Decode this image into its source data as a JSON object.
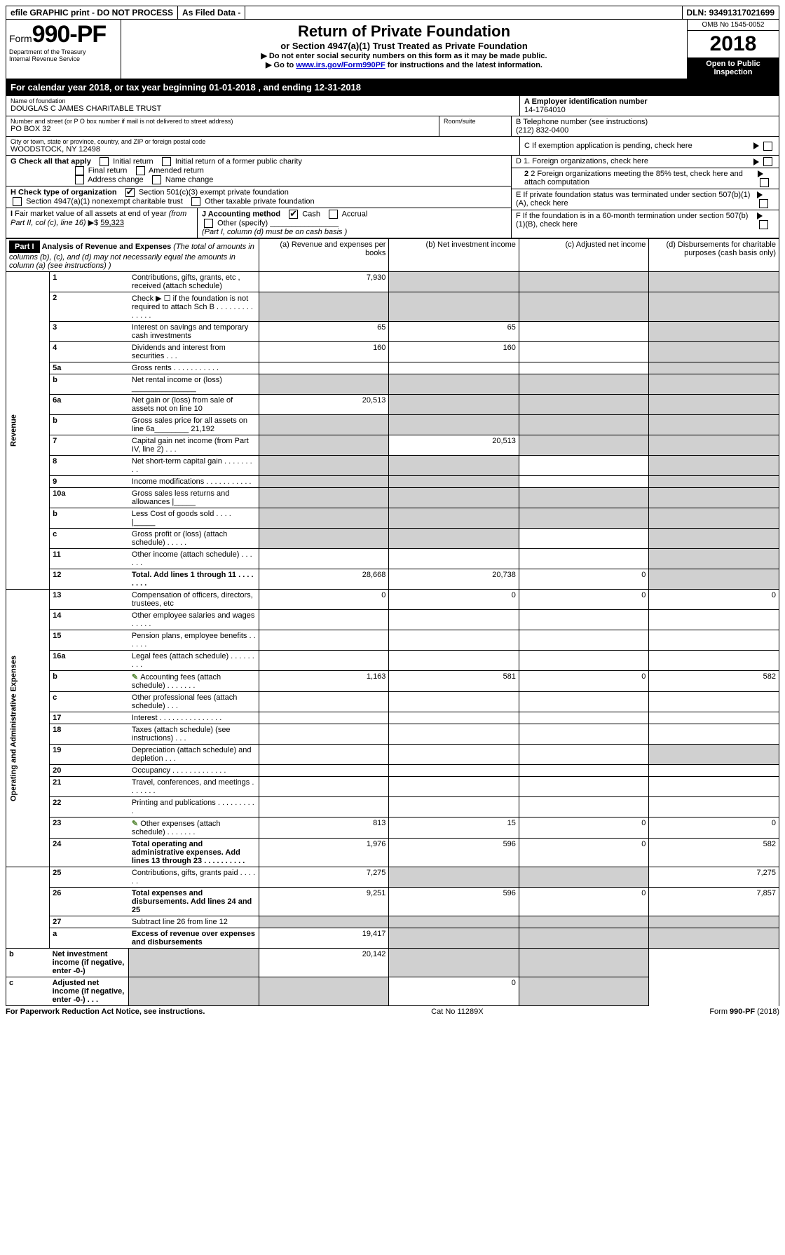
{
  "top_bar": {
    "efile": "efile GRAPHIC print - DO NOT PROCESS",
    "as_filed": "As Filed Data -",
    "dln_label": "DLN:",
    "dln": "93491317021699"
  },
  "header": {
    "form_label": "Form",
    "form_no": "990-PF",
    "dept1": "Department of the Treasury",
    "dept2": "Internal Revenue Service",
    "title": "Return of Private Foundation",
    "subtitle": "or Section 4947(a)(1) Trust Treated as Private Foundation",
    "inst1": "▶ Do not enter social security numbers on this form as it may be made public.",
    "inst2_pre": "▶ Go to ",
    "inst2_link": "www.irs.gov/Form990PF",
    "inst2_post": " for instructions and the latest information.",
    "omb": "OMB No 1545-0052",
    "year": "2018",
    "open1": "Open to Public",
    "open2": "Inspection"
  },
  "cal_year": {
    "pre": "For calendar year 2018, or tax year beginning ",
    "begin": "01-01-2018",
    "mid": " , and ending ",
    "end": "12-31-2018"
  },
  "name_block": {
    "name_label": "Name of foundation",
    "name": "DOUGLAS C JAMES CHARITABLE TRUST",
    "addr_label": "Number and street (or P O  box number if mail is not delivered to street address)",
    "room_label": "Room/suite",
    "addr": "PO BOX 32",
    "city_label": "City or town, state or province, country, and ZIP or foreign postal code",
    "city": "WOODSTOCK, NY  12498"
  },
  "right_block": {
    "a_label": "A Employer identification number",
    "a_val": "14-1764010",
    "b_label": "B Telephone number (see instructions)",
    "b_val": "(212) 832-0400",
    "c_label": "C If exemption application is pending, check here",
    "d1_label": "D 1. Foreign organizations, check here",
    "d2_label": "2  Foreign organizations meeting the 85% test, check here and attach computation",
    "e_label": "E  If private foundation status was terminated under section 507(b)(1)(A), check here",
    "f_label": "F  If the foundation is in a 60-month termination under section 507(b)(1)(B), check here"
  },
  "g_block": {
    "g_label": "G Check all that apply",
    "initial": "Initial return",
    "initial_former": "Initial return of a former public charity",
    "final": "Final return",
    "amended": "Amended return",
    "addr_change": "Address change",
    "name_change": "Name change"
  },
  "h_block": {
    "h_label": "H Check type of organization",
    "sec501": "Section 501(c)(3) exempt private foundation",
    "sec4947": "Section 4947(a)(1) nonexempt charitable trust",
    "other_tax": "Other taxable private foundation"
  },
  "i_block": {
    "i_label": "I Fair market value of all assets at end of year (from Part II, col  (c), line 16) ▶$ ",
    "i_val": "59,323"
  },
  "j_block": {
    "j_label": "J Accounting method",
    "cash": "Cash",
    "accrual": "Accrual",
    "other": "Other (specify)",
    "note": "(Part I, column (d) must be on cash basis )"
  },
  "part1": {
    "label": "Part I",
    "title": "Analysis of Revenue and Expenses",
    "title_note": " (The total of amounts in columns (b), (c), and (d) may not necessarily equal the amounts in column (a) (see instructions) )",
    "col_a": "(a) Revenue and expenses per books",
    "col_b": "(b) Net investment income",
    "col_c": "(c) Adjusted net income",
    "col_d": "(d) Disbursements for charitable purposes (cash basis only)"
  },
  "sections": {
    "revenue": "Revenue",
    "opex": "Operating and Administrative Expenses"
  },
  "lines": [
    {
      "no": "1",
      "desc": "Contributions, gifts, grants, etc , received (attach schedule)",
      "a": "7,930",
      "b": "",
      "c": "",
      "d": "",
      "b_grey": true,
      "c_grey": true,
      "d_grey": true
    },
    {
      "no": "2",
      "desc": "Check ▶ ☐ if the foundation is not required to attach Sch B     .  .  .  .  .  .  .  .  .  .  .  .  .  .",
      "a": "",
      "b": "",
      "c": "",
      "d": "",
      "a_grey": true,
      "b_grey": true,
      "c_grey": true,
      "d_grey": true
    },
    {
      "no": "3",
      "desc": "Interest on savings and temporary cash investments",
      "a": "65",
      "b": "65",
      "c": "",
      "d": "",
      "d_grey": true
    },
    {
      "no": "4",
      "desc": "Dividends and interest from securities    .   .   .",
      "a": "160",
      "b": "160",
      "c": "",
      "d": "",
      "d_grey": true
    },
    {
      "no": "5a",
      "desc": "Gross rents     .  .  .  .  .  .  .  .  .  .  .",
      "a": "",
      "b": "",
      "c": "",
      "d": "",
      "d_grey": true
    },
    {
      "no": "b",
      "desc": "Net rental income or (loss)  _______________",
      "a": "",
      "b": "",
      "c": "",
      "d": "",
      "a_grey": true,
      "b_grey": true,
      "c_grey": true,
      "d_grey": true
    },
    {
      "no": "6a",
      "desc": "Net gain or (loss) from sale of assets not on line 10",
      "a": "20,513",
      "b": "",
      "c": "",
      "d": "",
      "b_grey": true,
      "c_grey": true,
      "d_grey": true
    },
    {
      "no": "b",
      "desc": "Gross sales price for all assets on line 6a________  21,192",
      "a": "",
      "b": "",
      "c": "",
      "d": "",
      "a_grey": true,
      "b_grey": true,
      "c_grey": true,
      "d_grey": true
    },
    {
      "no": "7",
      "desc": "Capital gain net income (from Part IV, line 2)   .   .   .",
      "a": "",
      "b": "20,513",
      "c": "",
      "d": "",
      "a_grey": true,
      "c_grey": true,
      "d_grey": true
    },
    {
      "no": "8",
      "desc": "Net short-term capital gain  .  .  .  .  .  .  .  .  .",
      "a": "",
      "b": "",
      "c": "",
      "d": "",
      "a_grey": true,
      "b_grey": true,
      "d_grey": true
    },
    {
      "no": "9",
      "desc": "Income modifications .  .  .  .  .  .  .  .  .  .  .",
      "a": "",
      "b": "",
      "c": "",
      "d": "",
      "a_grey": true,
      "b_grey": true,
      "d_grey": true
    },
    {
      "no": "10a",
      "desc": "Gross sales less returns and allowances |_____",
      "a": "",
      "b": "",
      "c": "",
      "d": "",
      "a_grey": true,
      "b_grey": true,
      "c_grey": true,
      "d_grey": true
    },
    {
      "no": "b",
      "desc": "Less  Cost of goods sold    .   .   .   .  |_____",
      "a": "",
      "b": "",
      "c": "",
      "d": "",
      "a_grey": true,
      "b_grey": true,
      "c_grey": true,
      "d_grey": true
    },
    {
      "no": "c",
      "desc": "Gross profit or (loss) (attach schedule)   .   .   .   .   .",
      "a": "",
      "b": "",
      "c": "",
      "d": "",
      "a_grey": true,
      "b_grey": true,
      "d_grey": true
    },
    {
      "no": "11",
      "desc": "Other income (attach schedule)    .   .   .   .   .   .",
      "a": "",
      "b": "",
      "c": "",
      "d": "",
      "d_grey": true
    },
    {
      "no": "12",
      "desc": "Total. Add lines 1 through 11   .   .   .   .   .   .   .   .",
      "a": "28,668",
      "b": "20,738",
      "c": "0",
      "d": "",
      "bold": true,
      "d_grey": true
    },
    {
      "no": "13",
      "desc": "Compensation of officers, directors, trustees, etc",
      "a": "0",
      "b": "0",
      "c": "0",
      "d": "0"
    },
    {
      "no": "14",
      "desc": "Other employee salaries and wages    .   .   .   .   .",
      "a": "",
      "b": "",
      "c": "",
      "d": ""
    },
    {
      "no": "15",
      "desc": "Pension plans, employee benefits  .   .   .   .   .   .",
      "a": "",
      "b": "",
      "c": "",
      "d": ""
    },
    {
      "no": "16a",
      "desc": "Legal fees (attach schedule) .  .  .  .  .  .  .  .  .",
      "a": "",
      "b": "",
      "c": "",
      "d": ""
    },
    {
      "no": "b",
      "desc": "Accounting fees (attach schedule) .  .  .  .  .  .  .",
      "a": "1,163",
      "b": "581",
      "c": "0",
      "d": "582",
      "attach": true
    },
    {
      "no": "c",
      "desc": "Other professional fees (attach schedule)    .   .   .",
      "a": "",
      "b": "",
      "c": "",
      "d": ""
    },
    {
      "no": "17",
      "desc": "Interest  .  .  .  .  .  .  .  .  .  .  .  .  .  .  .",
      "a": "",
      "b": "",
      "c": "",
      "d": ""
    },
    {
      "no": "18",
      "desc": "Taxes (attach schedule) (see instructions)    .   .   .",
      "a": "",
      "b": "",
      "c": "",
      "d": ""
    },
    {
      "no": "19",
      "desc": "Depreciation (attach schedule) and depletion   .   .   .",
      "a": "",
      "b": "",
      "c": "",
      "d": "",
      "d_grey": true
    },
    {
      "no": "20",
      "desc": "Occupancy   .  .  .  .  .  .  .  .  .  .  .  .  .",
      "a": "",
      "b": "",
      "c": "",
      "d": ""
    },
    {
      "no": "21",
      "desc": "Travel, conferences, and meetings .  .  .  .  .  .  .",
      "a": "",
      "b": "",
      "c": "",
      "d": ""
    },
    {
      "no": "22",
      "desc": "Printing and publications .  .  .  .  .  .  .  .  .  .",
      "a": "",
      "b": "",
      "c": "",
      "d": ""
    },
    {
      "no": "23",
      "desc": "Other expenses (attach schedule) .  .  .  .  .  .  .",
      "a": "813",
      "b": "15",
      "c": "0",
      "d": "0",
      "attach": true
    },
    {
      "no": "24",
      "desc": "Total operating and administrative expenses. Add lines 13 through 23  .   .   .   .   .   .   .   .   .   .",
      "a": "1,976",
      "b": "596",
      "c": "0",
      "d": "582",
      "bold": true
    },
    {
      "no": "25",
      "desc": "Contributions, gifts, grants paid    .   .   .   .   .   .",
      "a": "7,275",
      "b": "",
      "c": "",
      "d": "7,275",
      "b_grey": true,
      "c_grey": true
    },
    {
      "no": "26",
      "desc": "Total expenses and disbursements. Add lines 24 and 25",
      "a": "9,251",
      "b": "596",
      "c": "0",
      "d": "7,857",
      "bold": true
    },
    {
      "no": "27",
      "desc": "Subtract line 26 from line 12",
      "a": "",
      "b": "",
      "c": "",
      "d": "",
      "a_grey": true,
      "b_grey": true,
      "c_grey": true,
      "d_grey": true
    },
    {
      "no": "a",
      "desc": "Excess of revenue over expenses and disbursements",
      "a": "19,417",
      "b": "",
      "c": "",
      "d": "",
      "bold": true,
      "b_grey": true,
      "c_grey": true,
      "d_grey": true
    },
    {
      "no": "b",
      "desc": "Net investment income (if negative, enter -0-)",
      "a": "",
      "b": "20,142",
      "c": "",
      "d": "",
      "bold": true,
      "a_grey": true,
      "c_grey": true,
      "d_grey": true
    },
    {
      "no": "c",
      "desc": "Adjusted net income (if negative, enter -0-)   .   .   .",
      "a": "",
      "b": "",
      "c": "0",
      "d": "",
      "bold": true,
      "a_grey": true,
      "b_grey": true,
      "d_grey": true
    }
  ],
  "footer": {
    "left": "For Paperwork Reduction Act Notice, see instructions.",
    "mid": "Cat  No  11289X",
    "right": "Form 990-PF (2018)"
  }
}
